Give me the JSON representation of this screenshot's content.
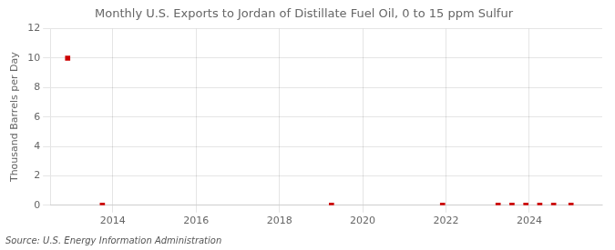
{
  "chart_data": {
    "type": "scatter",
    "title": "Monthly U.S. Exports to Jordan of Distillate Fuel Oil, 0 to 15 ppm Sulfur",
    "ylabel": "Thousand Barrels per Day",
    "annotation": "Source: U.S. Energy Information Administration",
    "x": [
      2012.917,
      2013.75,
      2019.25,
      2021.917,
      2023.25,
      2023.583,
      2023.917,
      2024.25,
      2024.583,
      2025.0
    ],
    "values": [
      10.0,
      0.0,
      0.0,
      0.0,
      0.0,
      0.0,
      0.0,
      0.0,
      0.0,
      0.0
    ],
    "color": "#cc0000",
    "marker": "square",
    "xlim": [
      2012.5,
      2025.75
    ],
    "xticks": [
      2014,
      2016,
      2018,
      2020,
      2022,
      2024
    ],
    "ylim": [
      0,
      12
    ],
    "yticks": [
      0,
      2,
      4,
      6,
      8,
      10,
      12
    ],
    "grid": true
  }
}
